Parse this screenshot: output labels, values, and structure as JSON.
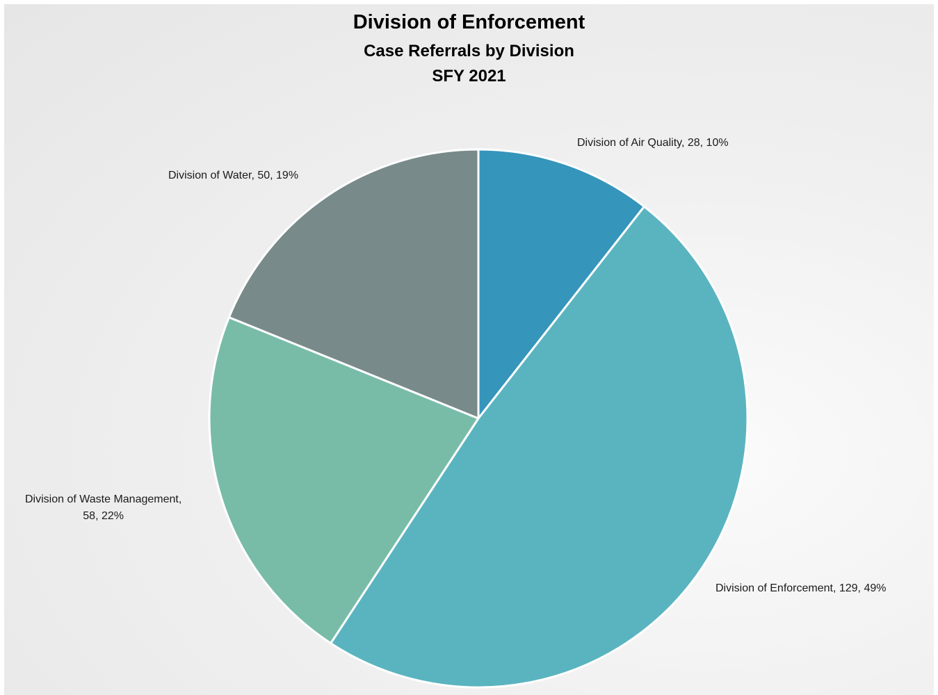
{
  "chart_data": {
    "type": "pie",
    "title": "Division of Enforcement",
    "subtitle": "Case Referrals by Division",
    "subtitle2": "SFY 2021",
    "slices": [
      {
        "label": "Division of Air Quality",
        "value": 28,
        "percent": "10%",
        "display": "Division of Air Quality, 28, 10%",
        "color": "#3595bb"
      },
      {
        "label": "Division of Enforcement",
        "value": 129,
        "percent": "49%",
        "display": "Division of Enforcement, 129, 49%",
        "color": "#5ab4c0"
      },
      {
        "label": "Division of Waste Management",
        "value": 58,
        "percent": "22%",
        "display_line1": "Division of Waste Management,",
        "display_line2": "58, 22%",
        "color": "#78bca8"
      },
      {
        "label": "Division of Water",
        "value": 50,
        "percent": "19%",
        "display": "Division of Water, 50, 19%",
        "color": "#788a8a"
      }
    ],
    "legend": "none",
    "slice_border_color": "#ffffff"
  }
}
